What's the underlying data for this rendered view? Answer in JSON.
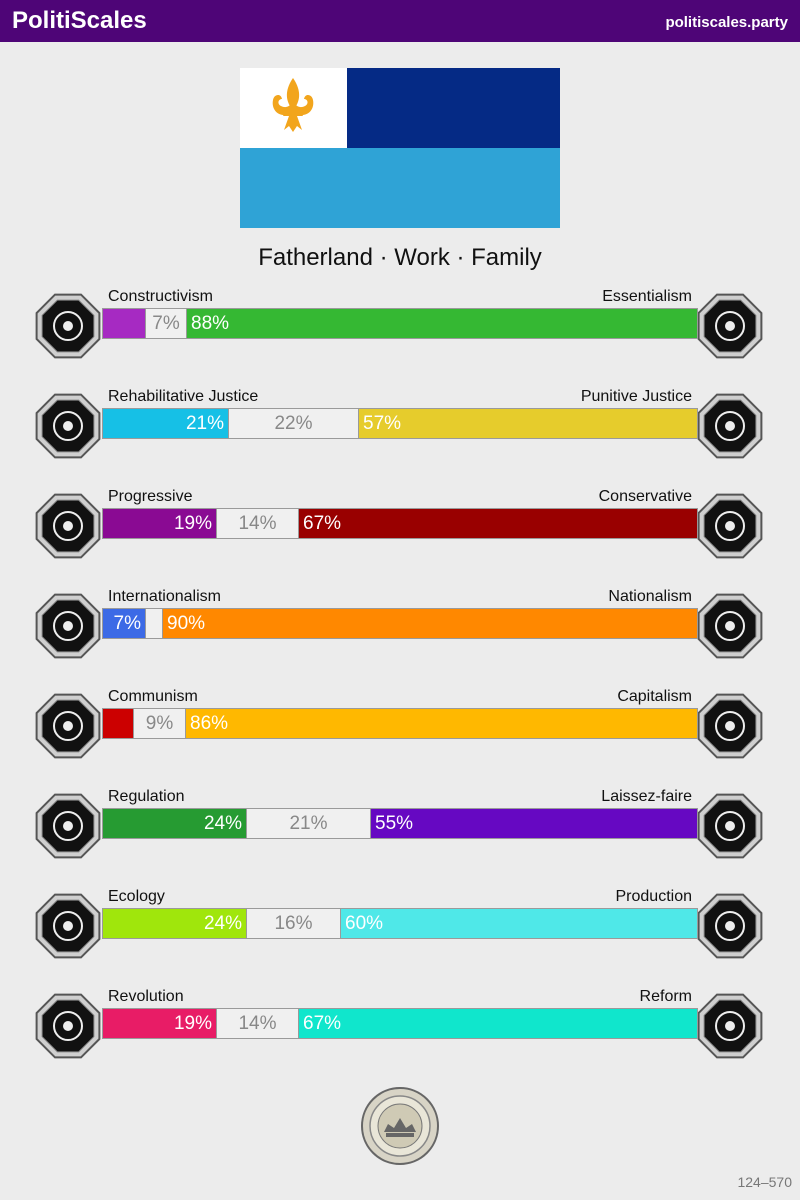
{
  "header": {
    "brand": "PolitiScales",
    "site": "politiscales.party"
  },
  "flag": {
    "colors": {
      "white": "#ffffff",
      "navy": "#052a85",
      "sky": "#2fa3d6",
      "fleur": "#f2a51c"
    },
    "emblem": "fleur-de-lis-icon"
  },
  "slogan": "Fatherland · Work · Family",
  "axes": [
    {
      "left": "Constructivism",
      "right": "Essentialism",
      "left_pct": 7,
      "mid_pct": 7,
      "right_pct": 88,
      "left_text": "",
      "mid_text": "7%",
      "right_text": "88%",
      "left_color": "#a62ac2",
      "right_color": "#35b833",
      "left_icon": "eye-icon",
      "right_icon": "flower-icon"
    },
    {
      "left": "Rehabilitative Justice",
      "right": "Punitive Justice",
      "left_pct": 21,
      "mid_pct": 22,
      "right_pct": 57,
      "left_text": "21%",
      "mid_text": "22%",
      "right_text": "57%",
      "left_color": "#16c0e6",
      "right_color": "#e6cc2c",
      "left_icon": "handshake-icon",
      "right_icon": "prison-bars-icon"
    },
    {
      "left": "Progressive",
      "right": "Conservative",
      "left_pct": 19,
      "mid_pct": 14,
      "right_pct": 67,
      "left_text": "19%",
      "mid_text": "14%",
      "right_text": "67%",
      "left_color": "#8a0a93",
      "right_color": "#990000",
      "left_icon": "rocket-icon",
      "right_icon": "quill-icon"
    },
    {
      "left": "Internationalism",
      "right": "Nationalism",
      "left_pct": 7,
      "mid_pct": 3,
      "right_pct": 90,
      "left_text": "7%",
      "mid_text": "",
      "right_text": "90%",
      "left_color": "#3c6ae6",
      "right_color": "#ff8800",
      "left_icon": "globe-icon",
      "right_icon": "flag-icon"
    },
    {
      "left": "Communism",
      "right": "Capitalism",
      "left_pct": 5,
      "mid_pct": 9,
      "right_pct": 86,
      "left_text": "",
      "mid_text": "9%",
      "right_text": "86%",
      "left_color": "#cc0000",
      "right_color": "#ffb800",
      "left_icon": "hammer-sickle-icon",
      "right_icon": "money-bag-icon"
    },
    {
      "left": "Regulation",
      "right": "Laissez-faire",
      "left_pct": 24,
      "mid_pct": 21,
      "right_pct": 55,
      "left_text": "24%",
      "mid_text": "21%",
      "right_text": "55%",
      "left_color": "#269b32",
      "right_color": "#6608c2",
      "left_icon": "ruler-icon",
      "right_icon": "butterfly-icon"
    },
    {
      "left": "Ecology",
      "right": "Production",
      "left_pct": 24,
      "mid_pct": 16,
      "right_pct": 60,
      "left_text": "24%",
      "mid_text": "16%",
      "right_text": "60%",
      "left_color": "#a0e60c",
      "right_color": "#4fe8e8",
      "left_icon": "sprout-icon",
      "right_icon": "gear-icon"
    },
    {
      "left": "Revolution",
      "right": "Reform",
      "left_pct": 19,
      "mid_pct": 14,
      "right_pct": 67,
      "left_text": "19%",
      "mid_text": "14%",
      "right_text": "67%",
      "left_color": "#e81c66",
      "right_color": "#10e6cc",
      "left_icon": "fist-icon",
      "right_icon": "parliament-icon"
    }
  ],
  "seal": "seal-icon",
  "version": "124–570"
}
